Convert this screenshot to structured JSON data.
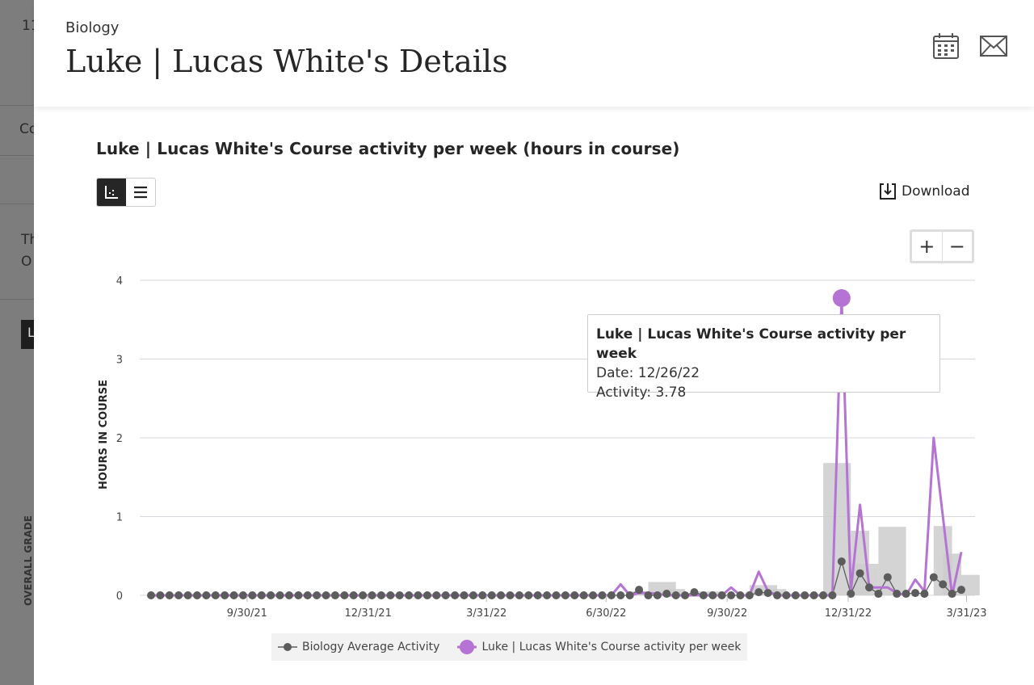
{
  "background": {
    "fragments": [
      "11",
      "Co",
      "Th",
      "O",
      "L"
    ],
    "vertical_label": "OVERALL GRADE"
  },
  "header": {
    "course": "Biology",
    "title": "Luke | Lucas White's Details",
    "icons": [
      "close-icon",
      "calendar-icon",
      "mail-icon"
    ]
  },
  "chart_section": {
    "title": "Luke | Lucas White's Course activity per week (hours in course)",
    "view_toggle": [
      "chart-view-icon",
      "list-view-icon"
    ],
    "download_label": "Download",
    "zoom_in": "+",
    "zoom_out": "−"
  },
  "tooltip": {
    "title": "Luke | Lucas White's Course activity per week",
    "date": "Date: 12/26/22",
    "activity": "Activity: 3.78"
  },
  "chart_data": {
    "type": "line",
    "title": "",
    "ylabel": "HOURS IN COURSE",
    "ylim": [
      0,
      4
    ],
    "yticks": [
      "0",
      "1",
      "2",
      "3",
      "4"
    ],
    "xticks": [
      "9/30/21",
      "12/31/21",
      "3/31/22",
      "6/30/22",
      "9/30/22",
      "12/31/22",
      "3/31/23"
    ],
    "grid": true,
    "legend_position": "bottom",
    "colors": {
      "average": "#5c5c5c",
      "student": "#b574d3",
      "bars": "#cccccc"
    },
    "x": [
      "7/19/21",
      "7/26/21",
      "8/2/21",
      "8/9/21",
      "8/16/21",
      "8/23/21",
      "8/30/21",
      "9/6/21",
      "9/13/21",
      "9/20/21",
      "9/27/21",
      "10/4/21",
      "10/11/21",
      "10/18/21",
      "10/25/21",
      "11/1/21",
      "11/8/21",
      "11/15/21",
      "11/22/21",
      "11/29/21",
      "12/6/21",
      "12/13/21",
      "12/20/21",
      "12/27/21",
      "1/3/22",
      "1/10/22",
      "1/17/22",
      "1/24/22",
      "1/31/22",
      "2/7/22",
      "2/14/22",
      "2/21/22",
      "2/28/22",
      "3/7/22",
      "3/14/22",
      "3/21/22",
      "3/28/22",
      "4/4/22",
      "4/11/22",
      "4/18/22",
      "4/25/22",
      "5/2/22",
      "5/9/22",
      "5/16/22",
      "5/23/22",
      "5/30/22",
      "6/6/22",
      "6/13/22",
      "6/20/22",
      "6/27/22",
      "7/4/22",
      "7/11/22",
      "7/18/22",
      "7/25/22",
      "8/1/22",
      "8/8/22",
      "8/15/22",
      "8/22/22",
      "8/29/22",
      "9/5/22",
      "9/12/22",
      "9/19/22",
      "9/26/22",
      "10/3/22",
      "10/10/22",
      "10/17/22",
      "10/24/22",
      "10/31/22",
      "11/7/22",
      "11/14/22",
      "11/21/22",
      "11/28/22",
      "12/5/22",
      "12/12/22",
      "12/19/22",
      "12/26/22",
      "1/2/23",
      "1/9/23",
      "1/16/23",
      "1/23/23",
      "1/30/23",
      "2/6/23",
      "2/13/23",
      "2/20/23",
      "2/27/23",
      "3/6/23",
      "3/13/23",
      "3/20/23",
      "3/27/23"
    ],
    "series": [
      {
        "name": "Biology Average Activity",
        "values": [
          0,
          0,
          0,
          0,
          0,
          0,
          0,
          0,
          0,
          0,
          0,
          0,
          0,
          0,
          0,
          0,
          0,
          0,
          0,
          0,
          0,
          0,
          0,
          0,
          0,
          0,
          0,
          0,
          0,
          0,
          0,
          0,
          0,
          0,
          0,
          0,
          0,
          0,
          0,
          0,
          0,
          0,
          0,
          0,
          0,
          0,
          0,
          0,
          0,
          0,
          0,
          0,
          0,
          0.07,
          0,
          0,
          0.02,
          0,
          0,
          0.04,
          0,
          0,
          0,
          0,
          0,
          0,
          0.04,
          0.03,
          0,
          0,
          0,
          0,
          0,
          0,
          0,
          0.43,
          0.02,
          0.28,
          0.1,
          0.02,
          0.23,
          0.02,
          0.02,
          0.03,
          0.02,
          0.23,
          0.14,
          0.02,
          0.07
        ]
      },
      {
        "name": "Luke | Lucas White's Course activity per week",
        "values": [
          0,
          0,
          0,
          0,
          0,
          0,
          0,
          0,
          0,
          0,
          0,
          0,
          0,
          0,
          0,
          0,
          0,
          0,
          0,
          0,
          0,
          0,
          0,
          0,
          0,
          0,
          0,
          0,
          0,
          0,
          0,
          0,
          0,
          0,
          0,
          0,
          0,
          0,
          0,
          0,
          0,
          0,
          0,
          0,
          0,
          0,
          0,
          0,
          0,
          0,
          0,
          0.14,
          0,
          0.03,
          0.03,
          0.02,
          0,
          0,
          0,
          0,
          0,
          0,
          0,
          0.1,
          0,
          0,
          0.3,
          0.05,
          0,
          0,
          0,
          0,
          0,
          0,
          0,
          3.78,
          0.05,
          1.15,
          0.1,
          0.1,
          0.1,
          0.03,
          0,
          0.2,
          0.05,
          2.0,
          1.0,
          0,
          0.55
        ]
      }
    ],
    "bars": [
      {
        "from": "7/18/22",
        "to": "8/1/22",
        "value": 0.05
      },
      {
        "from": "8/1/22",
        "to": "8/22/22",
        "value": 0.17
      },
      {
        "from": "8/15/22",
        "to": "8/29/22",
        "value": 0.08
      },
      {
        "from": "9/5/22",
        "to": "9/26/22",
        "value": 0.05
      },
      {
        "from": "10/17/22",
        "to": "11/7/22",
        "value": 0.13
      },
      {
        "from": "10/31/22",
        "to": "11/14/22",
        "value": 0.08
      },
      {
        "from": "12/12/22",
        "to": "1/2/23",
        "value": 1.68
      },
      {
        "from": "1/2/23",
        "to": "1/16/23",
        "value": 0.82
      },
      {
        "from": "1/2/23",
        "to": "1/23/23",
        "value": 0.4
      },
      {
        "from": "1/23/23",
        "to": "2/13/23",
        "value": 0.87
      },
      {
        "from": "3/6/23",
        "to": "3/20/23",
        "value": 0.88
      },
      {
        "from": "3/13/23",
        "to": "3/27/23",
        "value": 0.53
      },
      {
        "from": "3/27/23",
        "to": "4/10/23",
        "value": 0.26
      }
    ]
  }
}
